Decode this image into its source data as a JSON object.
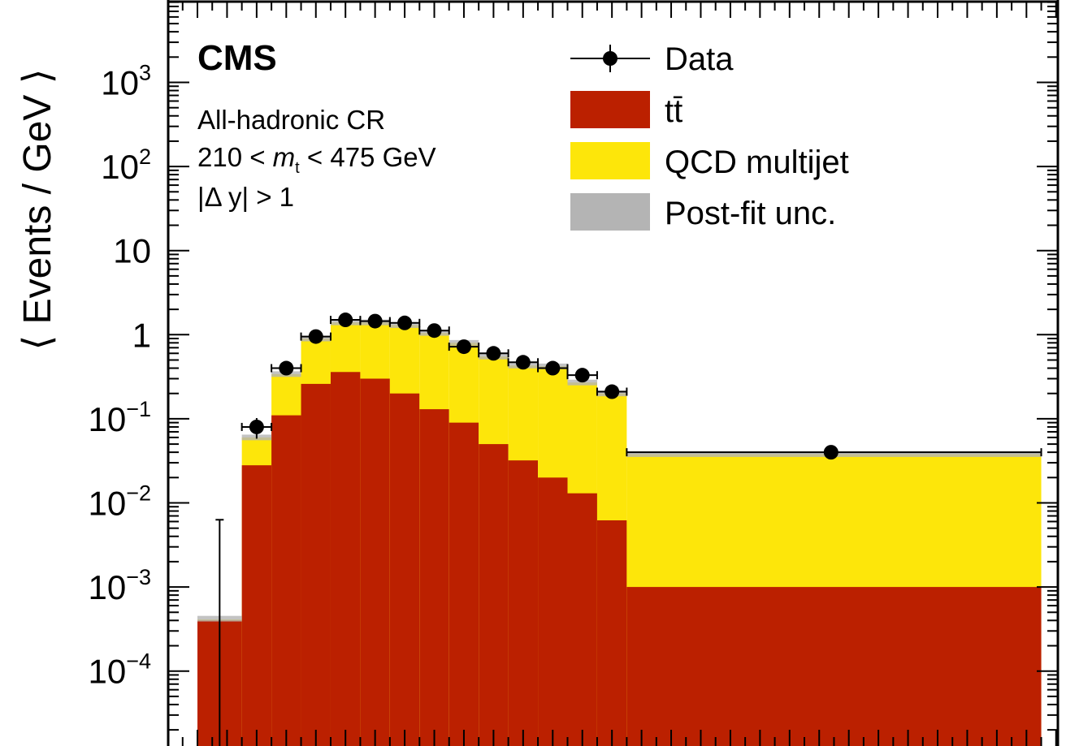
{
  "experiment_label": "CMS",
  "annotations": {
    "region": "All-hadronic CR",
    "mass_window_prefix": "210 < ",
    "mass_symbol": "m",
    "mass_subscript": "t",
    "mass_window_suffix": " < 475 GeV",
    "rapidity_cut": "|Δ y| > 1"
  },
  "legend": {
    "data": "Data",
    "ttbar": "tt̄",
    "qcd": "QCD multijet",
    "unc": "Post-fit unc."
  },
  "colors": {
    "ttbar": "#bb2000",
    "qcd": "#fde60a",
    "unc": "#b4b4b4",
    "data": "#000000"
  },
  "chart_data": {
    "type": "bar",
    "stacked": true,
    "log_y": true,
    "ylabel": "⟨ Events / GeV ⟩",
    "ylim": [
      1e-05,
      10000
    ],
    "y_ticks": [
      {
        "value": 0.0001,
        "base": "10",
        "exp": "−4"
      },
      {
        "value": 0.001,
        "base": "10",
        "exp": "−3"
      },
      {
        "value": 0.01,
        "base": "10",
        "exp": "−2"
      },
      {
        "value": 0.1,
        "base": "10",
        "exp": "−1"
      },
      {
        "value": 1,
        "base": "1",
        "exp": ""
      },
      {
        "value": 10,
        "base": "10",
        "exp": ""
      },
      {
        "value": 100,
        "base": "10",
        "exp": "2"
      },
      {
        "value": 1000,
        "base": "10",
        "exp": "3"
      }
    ],
    "bins": [
      {
        "lo": 0,
        "hi": 1.5,
        "ttbar": 0.0004,
        "qcd": 1e-05,
        "total": 0.00042,
        "data": 0.0,
        "data_err_up": 0.0063
      },
      {
        "lo": 1.5,
        "hi": 2.5,
        "ttbar": 0.028,
        "qcd": 0.032,
        "total": 0.06,
        "data": 0.08,
        "data_err_up": 0.022
      },
      {
        "lo": 2.5,
        "hi": 3.5,
        "ttbar": 0.11,
        "qcd": 0.23,
        "total": 0.34,
        "data": 0.4,
        "data_err_up": 0.04
      },
      {
        "lo": 3.5,
        "hi": 4.5,
        "ttbar": 0.26,
        "qcd": 0.64,
        "total": 0.9,
        "data": 0.95,
        "data_err_up": 0.06
      },
      {
        "lo": 4.5,
        "hi": 5.5,
        "ttbar": 0.36,
        "qcd": 1.04,
        "total": 1.4,
        "data": 1.5,
        "data_err_up": 0.08
      },
      {
        "lo": 5.5,
        "hi": 6.5,
        "ttbar": 0.3,
        "qcd": 1.1,
        "total": 1.4,
        "data": 1.45,
        "data_err_up": 0.08
      },
      {
        "lo": 6.5,
        "hi": 7.5,
        "ttbar": 0.2,
        "qcd": 1.1,
        "total": 1.3,
        "data": 1.38,
        "data_err_up": 0.08
      },
      {
        "lo": 7.5,
        "hi": 8.5,
        "ttbar": 0.13,
        "qcd": 0.92,
        "total": 1.05,
        "data": 1.12,
        "data_err_up": 0.07
      },
      {
        "lo": 8.5,
        "hi": 9.5,
        "ttbar": 0.09,
        "qcd": 0.71,
        "total": 0.8,
        "data": 0.72,
        "data_err_up": 0.05
      },
      {
        "lo": 9.5,
        "hi": 10.5,
        "ttbar": 0.05,
        "qcd": 0.5,
        "total": 0.55,
        "data": 0.6,
        "data_err_up": 0.05
      },
      {
        "lo": 10.5,
        "hi": 11.5,
        "ttbar": 0.032,
        "qcd": 0.398,
        "total": 0.43,
        "data": 0.47,
        "data_err_up": 0.04
      },
      {
        "lo": 11.5,
        "hi": 12.5,
        "ttbar": 0.02,
        "qcd": 0.4,
        "total": 0.42,
        "data": 0.4,
        "data_err_up": 0.035
      },
      {
        "lo": 12.5,
        "hi": 13.5,
        "ttbar": 0.013,
        "qcd": 0.257,
        "total": 0.27,
        "data": 0.33,
        "data_err_up": 0.03
      },
      {
        "lo": 13.5,
        "hi": 14.5,
        "ttbar": 0.0062,
        "qcd": 0.194,
        "total": 0.2,
        "data": 0.21,
        "data_err_up": 0.02
      },
      {
        "lo": 14.5,
        "hi": 28.5,
        "ttbar": 0.001,
        "qcd": 0.037,
        "total": 0.038,
        "data": 0.04,
        "data_err_up": 0.003
      }
    ]
  }
}
